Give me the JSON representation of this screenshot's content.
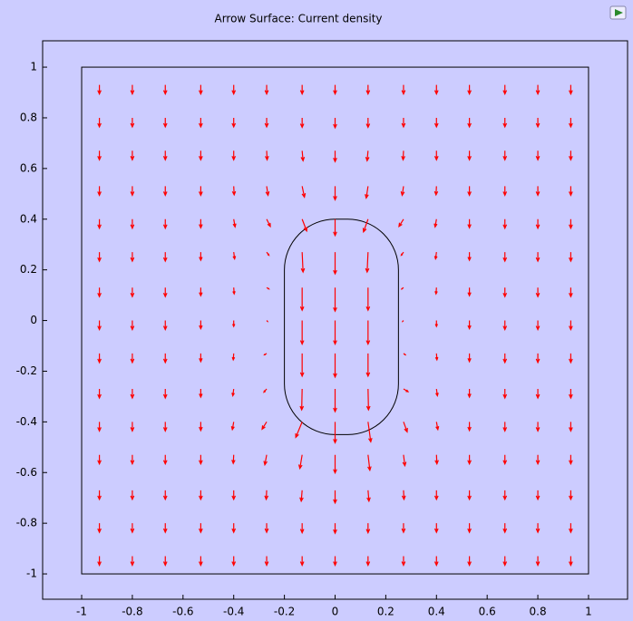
{
  "chart_data": {
    "type": "quiver",
    "title": "Arrow Surface: Current density",
    "xlim": [
      -1.154,
      1.154
    ],
    "ylim": [
      -1.1,
      1.104
    ],
    "xticks": [
      -1,
      -0.8,
      -0.6,
      -0.4,
      -0.2,
      0,
      0.2,
      0.4,
      0.6,
      0.8,
      1
    ],
    "yticks": [
      -1,
      -0.8,
      -0.6,
      -0.4,
      -0.2,
      0,
      0.2,
      0.4,
      0.6,
      0.8,
      1
    ],
    "arrow_color": "#ff0000",
    "geometry": [
      {
        "xlim": [
          -1,
          1
        ],
        "ylim": [
          -1,
          1
        ]
      },
      {
        "xlim": [
          -0.2,
          0.25
        ],
        "ylim": [
          -0.45,
          0.4
        ],
        "corner_radius": 0.2
      }
    ],
    "x": [
      -0.93,
      -0.8,
      -0.67,
      -0.53,
      -0.4,
      -0.27,
      -0.13,
      0,
      0.13,
      0.27,
      0.4,
      0.53,
      0.67,
      0.8,
      0.93
    ],
    "y": [
      0.93,
      0.8,
      0.67,
      0.53,
      0.4,
      0.27,
      0.13,
      0,
      -0.13,
      -0.27,
      -0.4,
      -0.53,
      -0.67,
      -0.8,
      -0.93
    ],
    "u": [
      [
        0,
        0,
        0,
        0,
        0,
        0,
        0,
        0,
        0,
        0,
        0,
        0,
        0,
        0,
        0
      ],
      [
        0,
        0,
        0,
        0,
        0,
        0,
        0,
        0,
        0,
        0,
        0,
        0,
        0,
        0,
        0
      ],
      [
        0,
        0,
        0,
        0,
        0,
        0.05,
        0.1,
        0,
        -0.1,
        -0.05,
        0,
        0,
        0,
        0,
        0
      ],
      [
        0,
        0,
        0,
        0,
        0.05,
        0.15,
        0.25,
        0,
        -0.2,
        -0.15,
        -0.05,
        0,
        0,
        0,
        0
      ],
      [
        0,
        0,
        0,
        0,
        0.15,
        0.4,
        0.5,
        0,
        -0.5,
        -0.5,
        -0.15,
        0,
        0,
        0,
        0
      ],
      [
        0,
        0,
        0,
        0,
        0.1,
        0.25,
        0.1,
        0,
        -0.1,
        -0.25,
        -0.1,
        0,
        0,
        0,
        0
      ],
      [
        0,
        0,
        0,
        0,
        0.05,
        0.25,
        0,
        0,
        0,
        -0.2,
        -0.05,
        0,
        0,
        0,
        0
      ],
      [
        0,
        0,
        0,
        0,
        0,
        0.1,
        0,
        0,
        0,
        -0.1,
        0,
        0,
        0,
        0,
        0
      ],
      [
        0,
        0,
        0,
        0,
        -0.05,
        -0.25,
        0,
        0,
        0,
        0.2,
        0.05,
        0,
        0,
        0,
        0
      ],
      [
        0,
        0,
        0,
        0,
        -0.1,
        -0.3,
        -0.05,
        0,
        0.05,
        0.5,
        0.1,
        0,
        0,
        0,
        0
      ],
      [
        0,
        0,
        0,
        0,
        -0.15,
        -0.5,
        -0.7,
        0,
        0.3,
        0.4,
        0.15,
        0,
        0,
        0,
        0
      ],
      [
        0,
        0,
        0,
        0,
        -0.05,
        -0.2,
        -0.25,
        0,
        0.2,
        0.15,
        0.05,
        0,
        0,
        0,
        0
      ],
      [
        0,
        0,
        0,
        0,
        0,
        -0.05,
        -0.1,
        0,
        0.1,
        0.05,
        0,
        0,
        0,
        0,
        0
      ],
      [
        0,
        0,
        0,
        0,
        0,
        0,
        0,
        0,
        0,
        0,
        0,
        0,
        0,
        0,
        0
      ],
      [
        0,
        0,
        0,
        0,
        0,
        0,
        0,
        0,
        0,
        0,
        0,
        0,
        0,
        0,
        0
      ]
    ],
    "v": [
      [
        -1,
        -1,
        -1,
        -1,
        -1,
        -1,
        -1,
        -1,
        -1,
        -1,
        -1,
        -1,
        -1,
        -1,
        -1
      ],
      [
        -1,
        -1,
        -1,
        -1,
        -1,
        -1,
        -1.05,
        -1.1,
        -1.05,
        -1,
        -1,
        -1,
        -1,
        -1,
        -1
      ],
      [
        -1,
        -1,
        -1,
        -1,
        -1,
        -1,
        -1.1,
        -1.2,
        -1.1,
        -1,
        -1,
        -1,
        -1,
        -1,
        -1
      ],
      [
        -1,
        -1,
        -1,
        -1,
        -0.95,
        -1,
        -1.2,
        -1.5,
        -1.3,
        -1,
        -0.95,
        -1,
        -1,
        -1,
        -1
      ],
      [
        -1,
        -1,
        -1,
        -0.95,
        -0.85,
        -0.8,
        -1.3,
        -1.8,
        -1.4,
        -0.8,
        -0.85,
        -0.95,
        -1,
        -1,
        -1
      ],
      [
        -1,
        -1,
        -1,
        -0.9,
        -0.75,
        -0.35,
        -2.2,
        -2.4,
        -2.2,
        -0.35,
        -0.75,
        -0.9,
        -1,
        -1,
        -1
      ],
      [
        -1,
        -1,
        -1,
        -0.9,
        -0.7,
        -0.15,
        -2.5,
        -2.6,
        -2.5,
        -0.15,
        -0.7,
        -0.9,
        -1,
        -1,
        -1
      ],
      [
        -1,
        -1,
        -1,
        -0.9,
        -0.65,
        -0.1,
        -2.6,
        -2.6,
        -2.6,
        -0.1,
        -0.65,
        -0.9,
        -1,
        -1,
        -1
      ],
      [
        -1,
        -1,
        -1,
        -0.9,
        -0.7,
        -0.15,
        -2.5,
        -2.6,
        -2.5,
        -0.15,
        -0.7,
        -0.9,
        -1,
        -1,
        -1
      ],
      [
        -1,
        -1,
        -1,
        -0.9,
        -0.75,
        -0.35,
        -2.3,
        -2.5,
        -2.3,
        -0.3,
        -0.75,
        -0.9,
        -1,
        -1,
        -1
      ],
      [
        -1,
        -1,
        -1,
        -0.95,
        -0.85,
        -0.8,
        -1.7,
        -2.3,
        -2.2,
        -1.1,
        -0.85,
        -0.95,
        -1,
        -1,
        -1
      ],
      [
        -1,
        -1,
        -1,
        -1,
        -0.95,
        -1.1,
        -1.5,
        -2,
        -1.7,
        -1.2,
        -1,
        -1,
        -1,
        -1,
        -1
      ],
      [
        -1,
        -1,
        -1,
        -1,
        -1,
        -1,
        -1.2,
        -1.4,
        -1.2,
        -1,
        -1,
        -1,
        -1,
        -1,
        -1
      ],
      [
        -1,
        -1,
        -1,
        -1,
        -1,
        -1,
        -1.05,
        -1.1,
        -1.05,
        -1,
        -1,
        -1,
        -1,
        -1,
        -1
      ],
      [
        -1,
        -1,
        -1,
        -1,
        -1,
        -1,
        -1,
        -1,
        -1,
        -1,
        -1,
        -1,
        -1,
        -1,
        -1
      ]
    ]
  }
}
